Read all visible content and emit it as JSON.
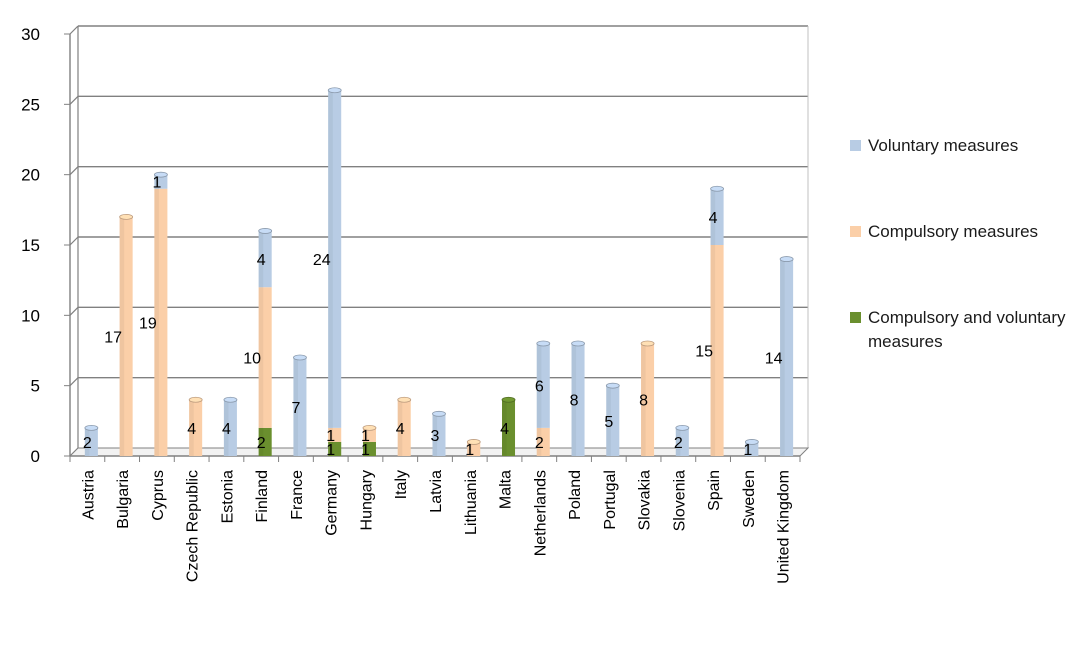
{
  "chart_data": {
    "type": "bar",
    "stacked": true,
    "categories": [
      "Austria",
      "Bulgaria",
      "Cyprus",
      "Czech Republic",
      "Estonia",
      "Finland",
      "France",
      "Germany",
      "Hungary",
      "Italy",
      "Latvia",
      "Lithuania",
      "Malta",
      "Netherlands",
      "Poland",
      "Portugal",
      "Slovakia",
      "Slovenia",
      "Spain",
      "Sweden",
      "United Kingdom"
    ],
    "series": [
      {
        "name": "Compulsory and voluntary measures",
        "color": "#6a8f2e",
        "values": [
          0,
          0,
          0,
          0,
          0,
          2,
          0,
          1,
          1,
          0,
          0,
          0,
          4,
          0,
          0,
          0,
          0,
          0,
          0,
          0,
          0
        ]
      },
      {
        "name": "Compulsory measures",
        "color": "#fbcfa8",
        "values": [
          0,
          17,
          19,
          4,
          0,
          10,
          0,
          1,
          1,
          4,
          0,
          1,
          0,
          2,
          0,
          0,
          8,
          0,
          15,
          0,
          0
        ]
      },
      {
        "name": "Voluntary measures",
        "color": "#b8cce4",
        "values": [
          2,
          0,
          1,
          0,
          4,
          4,
          7,
          24,
          0,
          0,
          3,
          0,
          0,
          6,
          8,
          5,
          0,
          2,
          4,
          1,
          14
        ]
      }
    ],
    "ylim": [
      0,
      30
    ],
    "yticks": [
      0,
      5,
      10,
      15,
      20,
      25,
      30
    ],
    "grid": true,
    "legend_position": "right",
    "legend_order": [
      "Voluntary measures",
      "Compulsory measures",
      "Compulsory and voluntary measures"
    ],
    "title": "",
    "xlabel": "",
    "ylabel": ""
  }
}
